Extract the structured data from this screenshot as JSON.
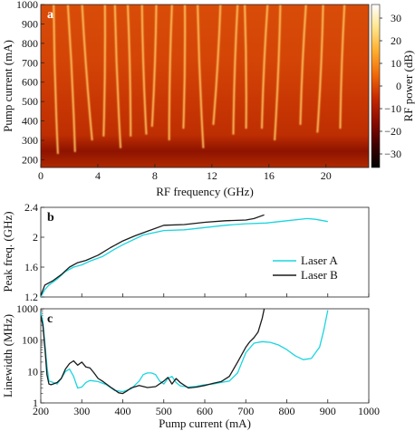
{
  "panel_labels": {
    "a": "a",
    "b": "b",
    "c": "c"
  },
  "chart_data": [
    {
      "type": "heatmap",
      "panel": "a",
      "xlabel": "RF frequency (GHz)",
      "ylabel": "Pump current (mA)",
      "xlim": [
        0,
        23
      ],
      "ylim": [
        160,
        1000
      ],
      "xticks": [
        0,
        4,
        8,
        12,
        16,
        20
      ],
      "yticks": [
        200,
        300,
        400,
        500,
        600,
        700,
        800,
        900,
        1000
      ],
      "colorbar": {
        "label": "RF power (dB)",
        "range": [
          -36,
          36
        ],
        "ticks": [
          30,
          20,
          10,
          0,
          -10,
          -20,
          -30
        ],
        "colors": [
          "#000000",
          "#400000",
          "#8b0a00",
          "#c82a00",
          "#f06a08",
          "#ffb030",
          "#ffe58c",
          "#ffffff"
        ]
      },
      "bright_lines": [
        {
          "x_top": 0.9,
          "x_bottom": 1.2,
          "y_low": 230
        },
        {
          "x_top": 1.9,
          "x_bottom": 2.4,
          "y_low": 240
        },
        {
          "x_top": 2.9,
          "x_bottom": 3.6,
          "y_low": 300
        },
        {
          "x_top": 4.5,
          "x_bottom": 4.4,
          "y_low": 320
        },
        {
          "x_top": 5.2,
          "x_bottom": 5.6,
          "y_low": 260
        },
        {
          "x_top": 6.1,
          "x_bottom": 6.3,
          "y_low": 320
        },
        {
          "x_top": 7.1,
          "x_bottom": 7.4,
          "y_low": 330
        },
        {
          "x_top": 8.1,
          "x_bottom": 7.8,
          "y_low": 370
        },
        {
          "x_top": 9.2,
          "x_bottom": 9.0,
          "y_low": 300
        },
        {
          "x_top": 10.1,
          "x_bottom": 10.0,
          "y_low": 360
        },
        {
          "x_top": 11.0,
          "x_bottom": 11.4,
          "y_low": 260
        },
        {
          "x_top": 12.6,
          "x_bottom": 12.1,
          "y_low": 380
        },
        {
          "x_top": 13.8,
          "x_bottom": 13.5,
          "y_low": 330
        },
        {
          "x_top": 14.3,
          "x_bottom": 14.4,
          "y_low": 360
        },
        {
          "x_top": 15.9,
          "x_bottom": 15.5,
          "y_low": 360
        },
        {
          "x_top": 16.8,
          "x_bottom": 16.4,
          "y_low": 300
        },
        {
          "x_top": 18.6,
          "x_bottom": 18.2,
          "y_low": 380
        },
        {
          "x_top": 19.8,
          "x_bottom": 19.4,
          "y_low": 340
        },
        {
          "x_top": 21.3,
          "x_bottom": 21.0,
          "y_low": 360
        }
      ]
    },
    {
      "type": "line",
      "panel": "b",
      "xlabel": "",
      "ylabel": "Peak freq. (GHz)",
      "xlim": [
        200,
        1000
      ],
      "ylim": [
        1.2,
        2.4
      ],
      "xticks": [
        200,
        300,
        400,
        500,
        600,
        700,
        800,
        900,
        1000
      ],
      "yticks": [
        1.2,
        1.6,
        2.0,
        2.4
      ],
      "legend": "right",
      "series": [
        {
          "name": "Laser A",
          "color": "#1ad5df",
          "x": [
            200,
            210,
            220,
            240,
            260,
            280,
            300,
            320,
            350,
            380,
            400,
            450,
            500,
            550,
            600,
            650,
            700,
            750,
            800,
            850,
            870,
            900
          ],
          "y": [
            1.2,
            1.3,
            1.36,
            1.44,
            1.54,
            1.6,
            1.63,
            1.68,
            1.74,
            1.84,
            1.9,
            2.03,
            2.09,
            2.1,
            2.13,
            2.16,
            2.18,
            2.19,
            2.22,
            2.25,
            2.24,
            2.21
          ]
        },
        {
          "name": "Laser B",
          "color": "#1a1a1a",
          "x": [
            200,
            210,
            230,
            250,
            270,
            290,
            310,
            340,
            370,
            400,
            430,
            460,
            500,
            550,
            600,
            650,
            700,
            720,
            745
          ],
          "y": [
            1.22,
            1.36,
            1.42,
            1.5,
            1.6,
            1.66,
            1.69,
            1.76,
            1.86,
            1.95,
            2.02,
            2.08,
            2.16,
            2.17,
            2.2,
            2.22,
            2.23,
            2.25,
            2.3
          ]
        }
      ]
    },
    {
      "type": "line",
      "panel": "c",
      "xlabel": "Pump current (mA)",
      "ylabel": "Linewidth (MHz)",
      "xlim": [
        200,
        1000
      ],
      "ylim": [
        1,
        1000
      ],
      "yscale": "log",
      "xticks": [
        200,
        300,
        400,
        500,
        600,
        700,
        800,
        900,
        1000
      ],
      "yticks": [
        1,
        10,
        100,
        1000
      ],
      "series": [
        {
          "name": "Laser A",
          "color": "#1ad5df",
          "x": [
            200,
            205,
            210,
            215,
            220,
            230,
            240,
            250,
            260,
            270,
            280,
            290,
            300,
            310,
            320,
            340,
            360,
            380,
            400,
            420,
            440,
            450,
            460,
            470,
            480,
            490,
            500,
            510,
            520,
            530,
            540,
            560,
            580,
            600,
            620,
            640,
            660,
            680,
            700,
            720,
            740,
            760,
            780,
            800,
            820,
            840,
            860,
            880,
            890,
            900
          ],
          "y": [
            800,
            400,
            80,
            15,
            5,
            4.5,
            4,
            6,
            10,
            12,
            7,
            3,
            3.2,
            4.5,
            5.2,
            4.8,
            3.8,
            2.5,
            2.3,
            2.8,
            5,
            8,
            9,
            9,
            8,
            5,
            4,
            6,
            7,
            4.5,
            3.5,
            3.2,
            3.4,
            3.8,
            4,
            4.5,
            5,
            9,
            40,
            80,
            90,
            85,
            70,
            50,
            32,
            24,
            26,
            60,
            200,
            900
          ]
        },
        {
          "name": "Laser B",
          "color": "#1a1a1a",
          "x": [
            200,
            205,
            210,
            215,
            220,
            225,
            230,
            240,
            250,
            260,
            270,
            280,
            290,
            300,
            310,
            320,
            330,
            340,
            350,
            360,
            370,
            380,
            390,
            400,
            410,
            420,
            440,
            460,
            480,
            500,
            510,
            520,
            530,
            540,
            560,
            580,
            600,
            620,
            640,
            660,
            680,
            700,
            710,
            720,
            730,
            740,
            745
          ],
          "y": [
            600,
            300,
            60,
            8,
            4,
            3.8,
            4,
            4.5,
            6,
            12,
            18,
            22,
            16,
            20,
            14,
            13,
            9,
            6,
            5,
            4,
            3.2,
            2.6,
            2.1,
            2.0,
            2.4,
            3,
            3.6,
            3.1,
            3.3,
            5,
            6.5,
            4,
            6,
            4.5,
            3.0,
            3.2,
            3.6,
            4.2,
            4.8,
            7,
            20,
            60,
            90,
            120,
            180,
            500,
            1000
          ]
        }
      ]
    }
  ]
}
